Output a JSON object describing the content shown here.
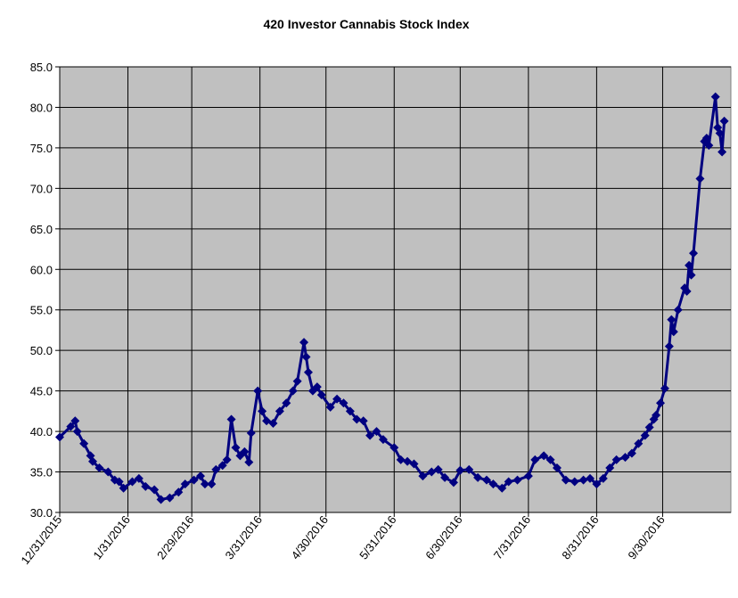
{
  "chart_data": {
    "type": "line",
    "title": "420 Investor Cannabis Stock Index",
    "xlabel": "",
    "ylabel": "",
    "ylim": [
      30,
      85
    ],
    "xlim": [
      "2015-12-31",
      "2016-10-31"
    ],
    "grid": true,
    "legend": "none",
    "colors": {
      "series": "#000080",
      "plot_bg": "#C0C0C0",
      "grid": "#000000"
    },
    "y_ticks": [
      "30.0",
      "35.0",
      "40.0",
      "45.0",
      "50.0",
      "55.0",
      "60.0",
      "65.0",
      "70.0",
      "75.0",
      "80.0",
      "85.0"
    ],
    "x_ticks": [
      {
        "date": "2015-12-31",
        "label": "12/31/2015"
      },
      {
        "date": "2016-01-31",
        "label": "1/31/2016"
      },
      {
        "date": "2016-02-29",
        "label": "2/29/2016"
      },
      {
        "date": "2016-03-31",
        "label": "3/31/2016"
      },
      {
        "date": "2016-04-30",
        "label": "4/30/2016"
      },
      {
        "date": "2016-05-31",
        "label": "5/31/2016"
      },
      {
        "date": "2016-06-30",
        "label": "6/30/2016"
      },
      {
        "date": "2016-07-31",
        "label": "7/31/2016"
      },
      {
        "date": "2016-08-31",
        "label": "8/31/2016"
      },
      {
        "date": "2016-09-30",
        "label": "9/30/2016"
      }
    ],
    "series": [
      {
        "name": "420 Investor Cannabis Stock Index",
        "x": [
          "2015-12-31",
          "2016-01-05",
          "2016-01-07",
          "2016-01-08",
          "2016-01-11",
          "2016-01-14",
          "2016-01-15",
          "2016-01-18",
          "2016-01-22",
          "2016-01-25",
          "2016-01-27",
          "2016-01-29",
          "2016-02-02",
          "2016-02-05",
          "2016-02-08",
          "2016-02-12",
          "2016-02-15",
          "2016-02-19",
          "2016-02-23",
          "2016-02-26",
          "2016-03-01",
          "2016-03-04",
          "2016-03-06",
          "2016-03-09",
          "2016-03-11",
          "2016-03-14",
          "2016-03-16",
          "2016-03-18",
          "2016-03-20",
          "2016-03-22",
          "2016-03-24",
          "2016-03-26",
          "2016-03-27",
          "2016-03-30",
          "2016-04-01",
          "2016-04-03",
          "2016-04-06",
          "2016-04-09",
          "2016-04-12",
          "2016-04-15",
          "2016-04-17",
          "2016-04-20",
          "2016-04-21",
          "2016-04-22",
          "2016-04-24",
          "2016-04-26",
          "2016-04-28",
          "2016-05-02",
          "2016-05-05",
          "2016-05-08",
          "2016-05-11",
          "2016-05-14",
          "2016-05-17",
          "2016-05-20",
          "2016-05-23",
          "2016-05-26",
          "2016-05-31",
          "2016-06-03",
          "2016-06-06",
          "2016-06-09",
          "2016-06-13",
          "2016-06-17",
          "2016-06-20",
          "2016-06-23",
          "2016-06-27",
          "2016-06-30",
          "2016-07-04",
          "2016-07-08",
          "2016-07-12",
          "2016-07-15",
          "2016-07-19",
          "2016-07-22",
          "2016-07-26",
          "2016-07-31",
          "2016-08-03",
          "2016-08-07",
          "2016-08-10",
          "2016-08-13",
          "2016-08-17",
          "2016-08-21",
          "2016-08-25",
          "2016-08-28",
          "2016-08-31",
          "2016-09-03",
          "2016-09-06",
          "2016-09-09",
          "2016-09-13",
          "2016-09-16",
          "2016-09-19",
          "2016-09-22",
          "2016-09-24",
          "2016-09-26",
          "2016-09-27",
          "2016-09-29",
          "2016-10-01",
          "2016-10-03",
          "2016-10-04",
          "2016-10-05",
          "2016-10-07",
          "2016-10-10",
          "2016-10-11",
          "2016-10-12",
          "2016-10-13",
          "2016-10-14",
          "2016-10-17",
          "2016-10-19",
          "2016-10-20",
          "2016-10-21",
          "2016-10-24",
          "2016-10-25",
          "2016-10-26",
          "2016-10-27",
          "2016-10-28"
        ],
        "values": [
          39.3,
          40.6,
          41.3,
          40.0,
          38.5,
          37.0,
          36.3,
          35.5,
          35.0,
          34.0,
          33.8,
          33.0,
          33.8,
          34.2,
          33.2,
          32.8,
          31.6,
          31.8,
          32.5,
          33.5,
          34.0,
          34.5,
          33.5,
          33.5,
          35.3,
          35.8,
          36.5,
          41.5,
          38.0,
          37.0,
          37.5,
          36.2,
          39.8,
          45.0,
          42.5,
          41.3,
          41.0,
          42.5,
          43.5,
          45.0,
          46.2,
          51.0,
          49.2,
          47.3,
          45.0,
          45.5,
          44.5,
          43.0,
          44.0,
          43.5,
          42.5,
          41.5,
          41.3,
          39.5,
          40.0,
          39.0,
          38.0,
          36.5,
          36.3,
          36.0,
          34.5,
          35.0,
          35.3,
          34.3,
          33.7,
          35.2,
          35.3,
          34.3,
          34.0,
          33.5,
          33.0,
          33.8,
          34.0,
          34.5,
          36.5,
          37.0,
          36.5,
          35.5,
          34.0,
          33.8,
          34.0,
          34.2,
          33.5,
          34.2,
          35.5,
          36.5,
          36.8,
          37.3,
          38.5,
          39.5,
          40.5,
          41.5,
          42.0,
          43.5,
          45.3,
          50.5,
          53.8,
          52.3,
          55.0,
          57.7,
          57.3,
          60.5,
          59.3,
          62.0,
          71.2,
          75.8,
          76.2,
          75.3,
          81.3,
          77.5,
          76.8,
          74.5,
          78.3
        ]
      }
    ]
  }
}
